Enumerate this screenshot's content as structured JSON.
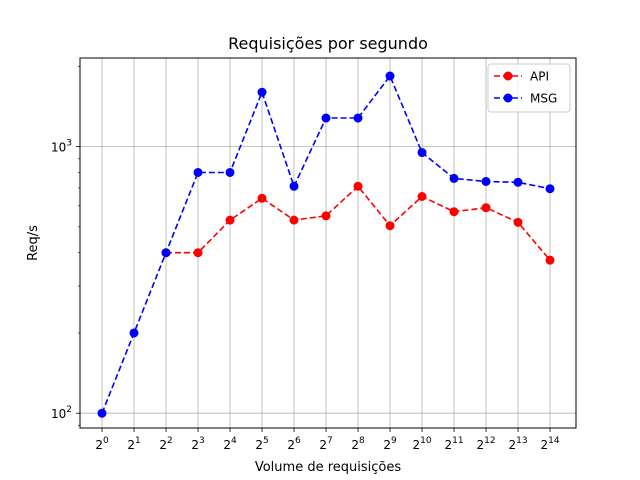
{
  "chart_data": {
    "type": "line",
    "title": "Requisições por segundo",
    "xlabel": "Volume de requisições",
    "ylabel": "Req/s",
    "x_ticks": [
      {
        "base": "2",
        "exp": "0"
      },
      {
        "base": "2",
        "exp": "1"
      },
      {
        "base": "2",
        "exp": "2"
      },
      {
        "base": "2",
        "exp": "3"
      },
      {
        "base": "2",
        "exp": "4"
      },
      {
        "base": "2",
        "exp": "5"
      },
      {
        "base": "2",
        "exp": "6"
      },
      {
        "base": "2",
        "exp": "7"
      },
      {
        "base": "2",
        "exp": "8"
      },
      {
        "base": "2",
        "exp": "9"
      },
      {
        "base": "2",
        "exp": "10"
      },
      {
        "base": "2",
        "exp": "11"
      },
      {
        "base": "2",
        "exp": "12"
      },
      {
        "base": "2",
        "exp": "13"
      },
      {
        "base": "2",
        "exp": "14"
      }
    ],
    "x": [
      1,
      2,
      4,
      8,
      16,
      32,
      64,
      128,
      256,
      512,
      1024,
      2048,
      4096,
      8192,
      16384
    ],
    "y_scale": "log",
    "ylim": [
      88,
      2150
    ],
    "y_ticks": [
      {
        "value": 100,
        "base": "10",
        "exp": "2"
      },
      {
        "value": 1000,
        "base": "10",
        "exp": "3"
      }
    ],
    "grid": true,
    "legend": "top-right",
    "series": [
      {
        "name": "API",
        "color": "#ff0000",
        "values": [
          null,
          null,
          400,
          400,
          530,
          640,
          530,
          550,
          710,
          505,
          650,
          570,
          590,
          520,
          375
        ]
      },
      {
        "name": "MSG",
        "color": "#0000ff",
        "values": [
          100,
          200,
          400,
          800,
          800,
          1600,
          710,
          1280,
          1280,
          1840,
          950,
          760,
          740,
          735,
          695
        ]
      }
    ]
  }
}
